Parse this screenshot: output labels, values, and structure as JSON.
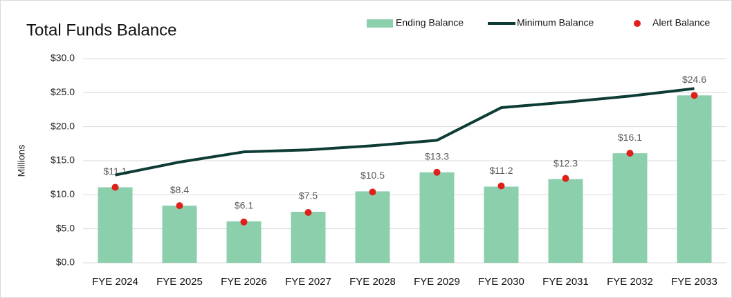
{
  "chart_data": {
    "type": "combo",
    "title": "Total Funds Balance",
    "y_label": "Millions",
    "categories": [
      "FYE 2024",
      "FYE 2025",
      "FYE 2026",
      "FYE 2027",
      "FYE 2028",
      "FYE 2029",
      "FYE 2030",
      "FYE 2031",
      "FYE 2032",
      "FYE 2033"
    ],
    "series": [
      {
        "name": "Ending Balance",
        "type": "bar",
        "color": "#8ccfad",
        "values": [
          11.1,
          8.4,
          6.1,
          7.5,
          10.5,
          13.3,
          11.2,
          12.3,
          16.1,
          24.6
        ],
        "value_labels": [
          "$11.1",
          "$8.4",
          "$6.1",
          "$7.5",
          "$10.5",
          "$13.3",
          "$11.2",
          "$12.3",
          "$16.1",
          "$24.6"
        ]
      },
      {
        "name": "Minimum Balance",
        "type": "line",
        "color": "#0d3b36",
        "values": [
          12.9,
          14.8,
          16.3,
          16.6,
          17.2,
          18.0,
          22.8,
          23.6,
          24.5,
          25.6
        ]
      },
      {
        "name": "Alert Balance",
        "type": "scatter",
        "color": "#e0201b",
        "values": [
          11.1,
          8.4,
          6.0,
          7.4,
          10.4,
          13.3,
          11.3,
          12.4,
          16.1,
          24.6
        ]
      }
    ],
    "ylim": [
      0,
      30
    ],
    "yticks": [
      {
        "value": 0,
        "label": "$0.0"
      },
      {
        "value": 5,
        "label": "$5.0"
      },
      {
        "value": 10,
        "label": "$10.0"
      },
      {
        "value": 15,
        "label": "$15.0"
      },
      {
        "value": 20,
        "label": "$20.0"
      },
      {
        "value": 25,
        "label": "$25.0"
      },
      {
        "value": 30,
        "label": "$30.0"
      }
    ],
    "grid": true,
    "legend": "top-right"
  }
}
